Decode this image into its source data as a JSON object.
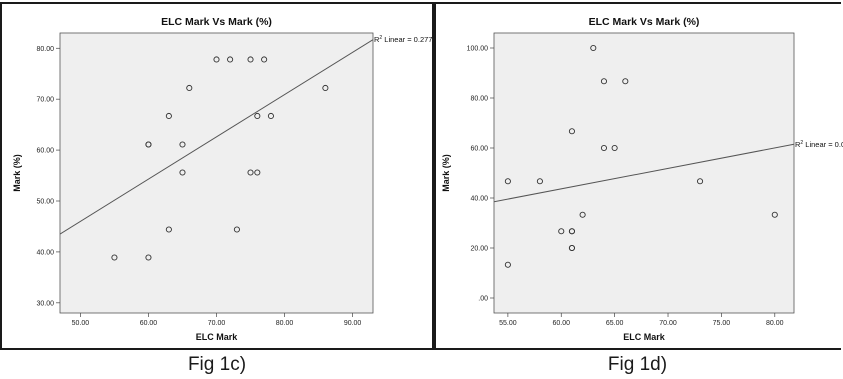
{
  "captions": [
    "Fig 1c)",
    "Fig 1d)"
  ],
  "chart_data": [
    {
      "type": "scatter",
      "title": "ELC Mark Vs Mark (%)",
      "xlabel": "ELC Mark",
      "ylabel": "Mark (%)",
      "xlim": [
        47,
        93
      ],
      "ylim": [
        28,
        83
      ],
      "xticks": [
        50,
        60,
        70,
        80,
        90
      ],
      "xtick_labels": [
        "50.00",
        "60.00",
        "70.00",
        "80.00",
        "90.00"
      ],
      "yticks": [
        30,
        40,
        50,
        60,
        70,
        80
      ],
      "ytick_labels": [
        "30.00",
        "40.00",
        "50.00",
        "60.00",
        "70.00",
        "80.00"
      ],
      "fit_line_label": "R² Linear = 0.277",
      "fit_line": {
        "x": [
          47,
          93
        ],
        "y": [
          43.5,
          81.7
        ]
      },
      "points": [
        {
          "x": 55,
          "y": 38.9
        },
        {
          "x": 60,
          "y": 38.9
        },
        {
          "x": 60,
          "y": 61.1
        },
        {
          "x": 60,
          "y": 61.1
        },
        {
          "x": 63,
          "y": 44.4
        },
        {
          "x": 63,
          "y": 66.7
        },
        {
          "x": 65,
          "y": 55.6
        },
        {
          "x": 65,
          "y": 61.1
        },
        {
          "x": 66,
          "y": 72.2
        },
        {
          "x": 70,
          "y": 77.8
        },
        {
          "x": 72,
          "y": 77.8
        },
        {
          "x": 73,
          "y": 44.4
        },
        {
          "x": 75,
          "y": 77.8
        },
        {
          "x": 75,
          "y": 55.6
        },
        {
          "x": 76,
          "y": 55.6
        },
        {
          "x": 76,
          "y": 66.7
        },
        {
          "x": 77,
          "y": 77.8
        },
        {
          "x": 78,
          "y": 66.7
        },
        {
          "x": 86,
          "y": 72.2
        }
      ],
      "grid": false,
      "background": "#efefef",
      "marker_color": "#333333",
      "line_color": "#555555"
    },
    {
      "type": "scatter",
      "title": "ELC Mark Vs Mark (%)",
      "xlabel": "ELC Mark",
      "ylabel": "Mark (%)",
      "xlim": [
        53.7,
        81.8
      ],
      "ylim": [
        -6,
        106
      ],
      "xticks": [
        55,
        60,
        65,
        70,
        75,
        80
      ],
      "xtick_labels": [
        "55.00",
        "60.00",
        "65.00",
        "70.00",
        "75.00",
        "80.00"
      ],
      "yticks": [
        0,
        20,
        40,
        60,
        80,
        100
      ],
      "ytick_labels": [
        ".00",
        "20.00",
        "40.00",
        "60.00",
        "80.00",
        "100.00"
      ],
      "fit_line_label": "R² Linear = 0.0",
      "fit_line": {
        "x": [
          53.7,
          81.8
        ],
        "y": [
          38.5,
          61.5
        ]
      },
      "points": [
        {
          "x": 55,
          "y": 13.3
        },
        {
          "x": 55,
          "y": 46.7
        },
        {
          "x": 58,
          "y": 46.7
        },
        {
          "x": 60,
          "y": 26.7
        },
        {
          "x": 61,
          "y": 20
        },
        {
          "x": 61,
          "y": 20
        },
        {
          "x": 61,
          "y": 26.7
        },
        {
          "x": 61,
          "y": 26.7
        },
        {
          "x": 61,
          "y": 66.7
        },
        {
          "x": 62,
          "y": 33.3
        },
        {
          "x": 63,
          "y": 100
        },
        {
          "x": 64,
          "y": 60
        },
        {
          "x": 64,
          "y": 86.7
        },
        {
          "x": 65,
          "y": 60
        },
        {
          "x": 66,
          "y": 86.7
        },
        {
          "x": 73,
          "y": 46.7
        },
        {
          "x": 80,
          "y": 33.3
        }
      ],
      "grid": false,
      "background": "#efefef",
      "marker_color": "#333333",
      "line_color": "#555555"
    }
  ]
}
